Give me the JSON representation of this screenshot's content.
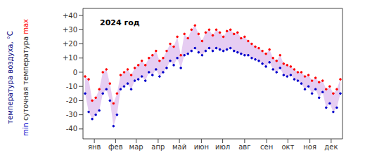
{
  "chart_data": {
    "type": "range",
    "title": "2024 год",
    "ylabel": "температура воздуха, °C",
    "ylabel_sub": "суточная температура",
    "x": [
      3,
      8,
      13,
      18,
      23,
      28,
      33,
      38,
      43,
      48,
      53,
      58,
      63,
      68,
      73,
      78,
      83,
      88,
      93,
      98,
      103,
      108,
      113,
      118,
      123,
      128,
      133,
      138,
      143,
      148,
      153,
      158,
      163,
      168,
      173,
      178,
      183,
      188,
      193,
      198,
      203,
      208,
      213,
      218,
      223,
      228,
      233,
      238,
      243,
      248,
      253,
      258,
      263,
      268,
      273,
      278,
      283,
      288,
      293,
      298,
      303,
      308,
      313,
      318,
      323,
      328,
      333,
      338,
      343,
      348,
      353,
      358,
      363
    ],
    "series": [
      {
        "name": "min",
        "color": "#0000cc",
        "marker": "dot",
        "line_style": "none",
        "values": [
          -15,
          -28,
          -33,
          -30,
          -27,
          -15,
          -12,
          -20,
          -38,
          -30,
          -12,
          -10,
          -8,
          -12,
          -6,
          -5,
          -3,
          -6,
          0,
          -2,
          2,
          -3,
          0,
          3,
          8,
          5,
          10,
          3,
          12,
          13,
          15,
          17,
          14,
          12,
          15,
          17,
          15,
          17,
          16,
          15,
          16,
          17,
          15,
          14,
          13,
          12,
          12,
          10,
          9,
          8,
          6,
          4,
          7,
          2,
          0,
          3,
          -2,
          -3,
          -2,
          -5,
          -6,
          -8,
          -12,
          -10,
          -15,
          -12,
          -18,
          -14,
          -25,
          -22,
          -28,
          -25,
          -15
        ]
      },
      {
        "name": "max",
        "color": "#ff0000",
        "marker": "dot",
        "line_style": "none",
        "values": [
          -3,
          -5,
          -20,
          -18,
          -12,
          0,
          2,
          -8,
          -22,
          -15,
          -2,
          0,
          2,
          -2,
          3,
          5,
          8,
          5,
          10,
          12,
          15,
          8,
          10,
          15,
          20,
          18,
          25,
          12,
          27,
          24,
          30,
          33,
          27,
          22,
          28,
          30,
          26,
          30,
          28,
          25,
          29,
          30,
          27,
          28,
          24,
          25,
          22,
          20,
          18,
          17,
          15,
          13,
          16,
          10,
          8,
          12,
          6,
          5,
          4,
          2,
          0,
          0,
          -3,
          -2,
          -6,
          -4,
          -7,
          -6,
          -12,
          -10,
          -15,
          -12,
          -5
        ]
      }
    ],
    "range_color": "#e6cdf2",
    "xlim": [
      0,
      366
    ],
    "xticks": [
      {
        "value": 16,
        "label": "янв"
      },
      {
        "value": 46,
        "label": "фев"
      },
      {
        "value": 75,
        "label": "мар"
      },
      {
        "value": 106,
        "label": "апр"
      },
      {
        "value": 136,
        "label": "май"
      },
      {
        "value": 167,
        "label": "июн"
      },
      {
        "value": 197,
        "label": "июл"
      },
      {
        "value": 228,
        "label": "авг"
      },
      {
        "value": 259,
        "label": "сен"
      },
      {
        "value": 289,
        "label": "окт"
      },
      {
        "value": 320,
        "label": "ноя"
      },
      {
        "value": 350,
        "label": "дек"
      }
    ],
    "ylim": [
      -47,
      45
    ],
    "yticks": [
      {
        "value": 40,
        "label": "+40"
      },
      {
        "value": 30,
        "label": "+30"
      },
      {
        "value": 20,
        "label": "+20"
      },
      {
        "value": 10,
        "label": "+10"
      },
      0,
      -10,
      -20,
      -30,
      -40
    ],
    "grid": false,
    "legend": "none"
  }
}
